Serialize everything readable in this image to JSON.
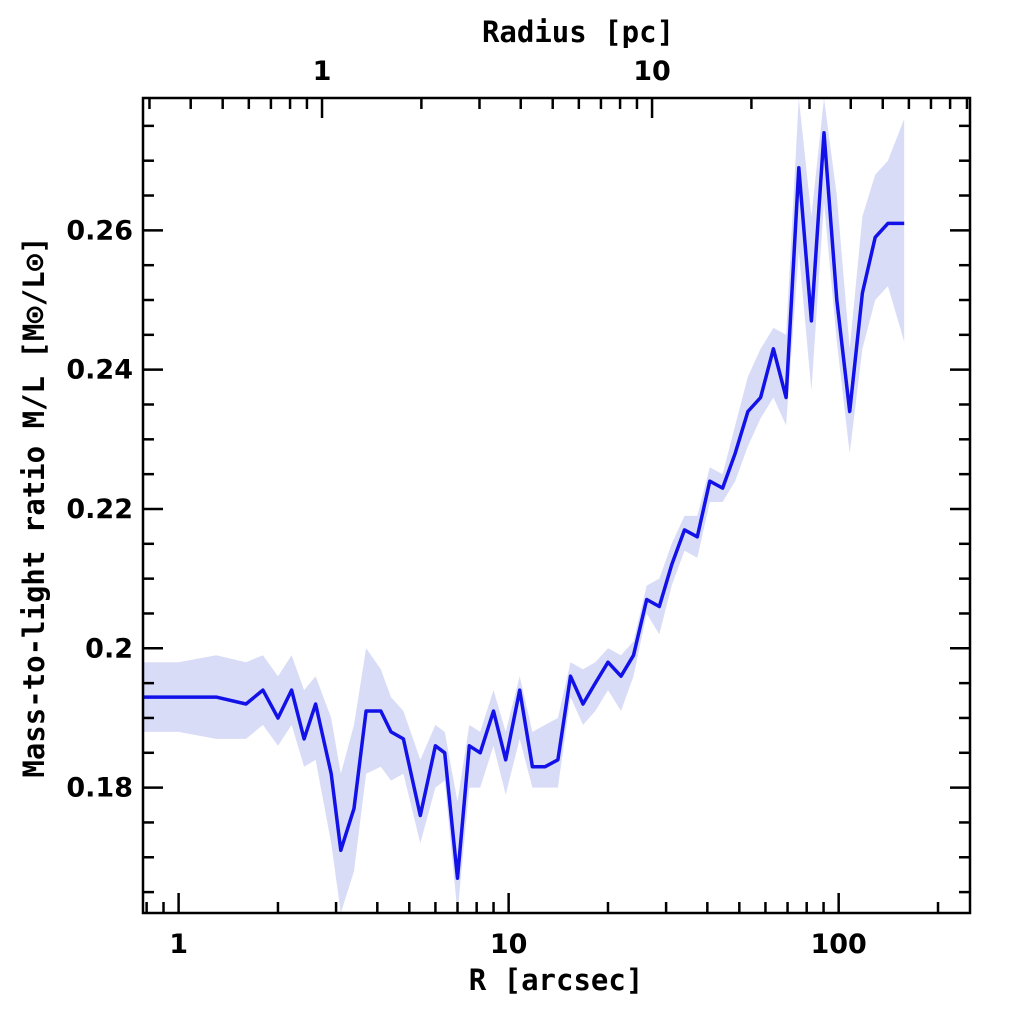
{
  "chart_data": {
    "type": "line",
    "xscale": "log",
    "xlabel": "R [arcsec]",
    "ylabel": "Mass-to-light ratio M/L [M⊙/L⊙]",
    "top_axis_label": "Radius [pc]",
    "xlim": [
      0.78,
      250
    ],
    "ylim": [
      0.162,
      0.279
    ],
    "x_ticks": [
      "1",
      "10",
      "100"
    ],
    "top_ticks": [
      "1",
      "10"
    ],
    "top_tick_arcsec": [
      2.72,
      27.2
    ],
    "y_ticks": [
      "0.18",
      "0.2",
      "0.22",
      "0.24",
      "0.26"
    ],
    "grid": false,
    "series": [
      {
        "color": "#1212e8",
        "band_color": "#d9dcf7",
        "x": [
          0.78,
          1.0,
          1.3,
          1.6,
          1.8,
          2.0,
          2.2,
          2.4,
          2.6,
          2.9,
          3.1,
          3.4,
          3.7,
          4.1,
          4.4,
          4.8,
          5.4,
          6.0,
          6.4,
          7.0,
          7.6,
          8.2,
          9.0,
          9.8,
          10.8,
          11.8,
          12.9,
          14.1,
          15.4,
          16.8,
          18.3,
          20.0,
          21.9,
          23.9,
          26.2,
          28.6,
          31.2,
          34.1,
          37.3,
          40.7,
          44.5,
          48.6,
          53.1,
          58.0,
          63.4,
          69.3,
          75.7,
          82.7,
          90.3,
          98.7,
          108.0,
          118.0,
          129.0,
          141.0,
          158.0
        ],
        "y": [
          0.193,
          0.193,
          0.193,
          0.192,
          0.194,
          0.19,
          0.194,
          0.187,
          0.192,
          0.182,
          0.171,
          0.177,
          0.191,
          0.191,
          0.188,
          0.187,
          0.176,
          0.186,
          0.185,
          0.167,
          0.186,
          0.185,
          0.191,
          0.184,
          0.194,
          0.183,
          0.183,
          0.184,
          0.196,
          0.192,
          0.195,
          0.198,
          0.196,
          0.199,
          0.207,
          0.206,
          0.212,
          0.217,
          0.216,
          0.224,
          0.223,
          0.228,
          0.234,
          0.236,
          0.243,
          0.236,
          0.269,
          0.247,
          0.274,
          0.25,
          0.234,
          0.251,
          0.259,
          0.261,
          0.261
        ],
        "upper": [
          0.198,
          0.198,
          0.199,
          0.198,
          0.199,
          0.196,
          0.199,
          0.194,
          0.196,
          0.19,
          0.182,
          0.189,
          0.2,
          0.197,
          0.193,
          0.191,
          0.184,
          0.189,
          0.188,
          0.178,
          0.189,
          0.188,
          0.194,
          0.188,
          0.196,
          0.188,
          0.189,
          0.19,
          0.198,
          0.197,
          0.198,
          0.2,
          0.199,
          0.201,
          0.209,
          0.21,
          0.215,
          0.219,
          0.219,
          0.226,
          0.225,
          0.232,
          0.239,
          0.243,
          0.246,
          0.245,
          0.279,
          0.262,
          0.279,
          0.265,
          0.243,
          0.262,
          0.268,
          0.27,
          0.276
        ],
        "lower": [
          0.188,
          0.188,
          0.187,
          0.187,
          0.189,
          0.186,
          0.189,
          0.183,
          0.184,
          0.172,
          0.162,
          0.168,
          0.182,
          0.183,
          0.181,
          0.182,
          0.172,
          0.18,
          0.181,
          0.162,
          0.18,
          0.18,
          0.186,
          0.179,
          0.187,
          0.18,
          0.18,
          0.18,
          0.193,
          0.189,
          0.191,
          0.194,
          0.191,
          0.196,
          0.205,
          0.202,
          0.209,
          0.214,
          0.213,
          0.221,
          0.221,
          0.224,
          0.229,
          0.233,
          0.236,
          0.232,
          0.257,
          0.237,
          0.264,
          0.244,
          0.228,
          0.243,
          0.25,
          0.252,
          0.244
        ]
      }
    ]
  }
}
